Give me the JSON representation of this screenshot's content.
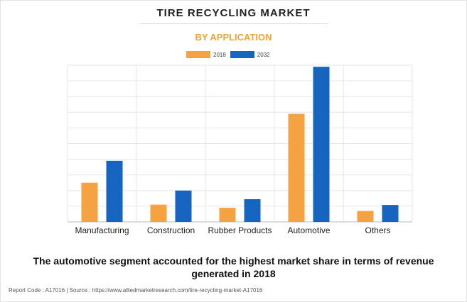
{
  "title": "TIRE RECYCLING MARKET",
  "subtitle": "BY APPLICATION",
  "caption": "The automotive segment accounted for the highest market share in terms of revenue generated in 2018",
  "footer": {
    "report_code": "Report Code : A17016",
    "separator": "|",
    "source": "Source : https://www.alliedmarketresearch.com/tire-recycling-market-A17016"
  },
  "colors": {
    "series_2018": "#f4a242",
    "series_2032": "#1565c0",
    "subtitle": "#f4a234",
    "grid": "#e6e6e6"
  },
  "chart_data": {
    "type": "bar",
    "title": "TIRE RECYCLING MARKET",
    "subtitle": "BY APPLICATION",
    "categories": [
      "Manufacturing",
      "Construction",
      "Rubber Products",
      "Automotive",
      "Others"
    ],
    "series": [
      {
        "name": "2018",
        "values": [
          2.5,
          1.1,
          0.9,
          6.9,
          0.7
        ]
      },
      {
        "name": "2032",
        "values": [
          3.9,
          2.0,
          1.45,
          9.9,
          1.08
        ]
      }
    ],
    "ylim": [
      0,
      10
    ],
    "grid": true,
    "legend": "top-center",
    "xlabel": "",
    "ylabel": ""
  }
}
